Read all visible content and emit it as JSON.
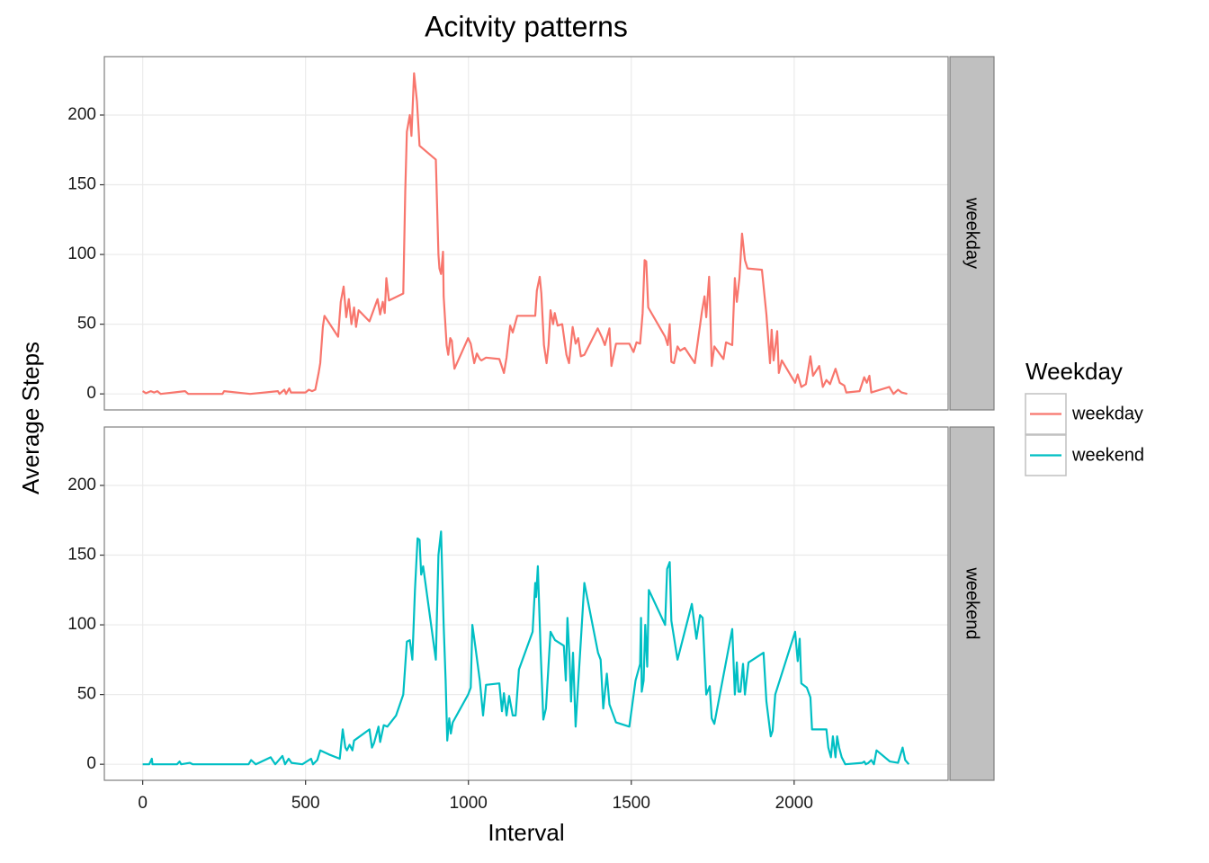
{
  "chart_data": {
    "type": "line",
    "title": "Acitvity patterns",
    "x_label": "Interval",
    "y_label": "Average Steps",
    "legend_title": "Weekday",
    "legend_position": "right",
    "grid": true,
    "xlim": [
      -117.75,
      2472.75
    ],
    "xticks": [
      0,
      500,
      1000,
      1500,
      2000
    ],
    "ylim": [
      -11.5,
      241.9
    ],
    "yticks": [
      0,
      50,
      100,
      150,
      200
    ],
    "series": [
      {
        "name": "weekday",
        "color": "#f8766d",
        "x": [
          0,
          10,
          25,
          35,
          45,
          55,
          130,
          140,
          245,
          250,
          330,
          415,
          420,
          435,
          440,
          450,
          455,
          500,
          510,
          520,
          530,
          540,
          545,
          553,
          558,
          600,
          608,
          617,
          625,
          633,
          641,
          649,
          655,
          663,
          696,
          721,
          729,
          737,
          743,
          748,
          756,
          800,
          806,
          811,
          820,
          825,
          833,
          842,
          850,
          855,
          900,
          908,
          911,
          916,
          922,
          924,
          933,
          938,
          944,
          949,
          952,
          957,
          999,
          1007,
          1018,
          1026,
          1035,
          1040,
          1054,
          1095,
          1109,
          1117,
          1128,
          1136,
          1150,
          1205,
          1210,
          1219,
          1224,
          1232,
          1240,
          1246,
          1252,
          1260,
          1265,
          1274,
          1288,
          1301,
          1309,
          1320,
          1329,
          1337,
          1345,
          1356,
          1397,
          1411,
          1419,
          1433,
          1439,
          1453,
          1494,
          1507,
          1516,
          1527,
          1535,
          1541,
          1546,
          1552,
          1604,
          1612,
          1618,
          1623,
          1631,
          1642,
          1650,
          1664,
          1695,
          1717,
          1725,
          1730,
          1739,
          1741,
          1747,
          1755,
          1783,
          1791,
          1810,
          1818,
          1824,
          1832,
          1840,
          1849,
          1857,
          1901,
          1915,
          1926,
          1931,
          1937,
          1948,
          1953,
          1962,
          2003,
          2011,
          2022,
          2036,
          2050,
          2058,
          2077,
          2088,
          2099,
          2110,
          2127,
          2140,
          2154,
          2160,
          2201,
          2215,
          2223,
          2231,
          2237,
          2292,
          2305,
          2319,
          2330,
          2347
        ],
        "values": [
          2,
          0.5,
          2,
          1,
          2,
          0,
          2,
          0,
          0,
          2,
          0,
          2,
          0,
          3,
          0,
          4,
          1,
          1,
          3,
          2,
          3,
          15,
          22,
          48,
          56,
          41,
          66,
          77,
          55,
          68,
          50,
          62,
          48,
          60,
          52,
          68,
          57,
          66,
          58,
          83,
          67,
          72,
          145,
          188,
          200,
          185,
          230,
          210,
          178,
          177,
          168,
          100,
          90,
          86,
          102,
          70,
          35,
          28,
          40,
          38,
          30,
          18,
          40,
          36,
          22,
          29,
          25,
          24,
          26,
          25,
          15,
          26,
          49,
          44,
          56,
          56,
          74,
          84,
          72,
          35,
          22,
          35,
          60,
          50,
          58,
          49,
          50,
          28,
          22,
          48,
          36,
          40,
          27,
          28,
          47,
          40,
          35,
          47,
          20,
          36,
          36,
          30,
          37,
          36,
          58,
          96,
          95,
          62,
          41,
          35,
          50,
          23,
          22,
          34,
          31,
          33,
          22,
          59,
          70,
          55,
          84,
          72,
          20,
          34,
          25,
          37,
          35,
          83,
          66,
          83,
          115,
          96,
          90,
          89,
          57,
          22,
          46,
          24,
          45,
          15,
          24,
          8,
          14,
          5,
          7,
          27,
          13,
          20,
          5,
          10,
          7,
          18,
          8,
          6,
          1,
          2,
          12,
          8,
          13,
          1,
          5,
          0,
          3,
          1,
          0
        ]
      },
      {
        "name": "weekend",
        "color": "#00bfc4",
        "x": [
          0,
          20,
          28,
          30,
          105,
          113,
          118,
          145,
          154,
          325,
          333,
          347,
          393,
          407,
          429,
          437,
          448,
          457,
          490,
          517,
          523,
          536,
          545,
          572,
          605,
          614,
          622,
          627,
          635,
          644,
          649,
          696,
          704,
          710,
          724,
          729,
          740,
          751,
          778,
          800,
          811,
          820,
          828,
          836,
          844,
          850,
          855,
          861,
          900,
          908,
          916,
          924,
          930,
          935,
          941,
          946,
          952,
          999,
          1007,
          1012,
          1021,
          1035,
          1045,
          1054,
          1095,
          1103,
          1109,
          1117,
          1125,
          1136,
          1145,
          1155,
          1197,
          1205,
          1208,
          1213,
          1222,
          1230,
          1238,
          1252,
          1266,
          1293,
          1299,
          1304,
          1310,
          1315,
          1321,
          1329,
          1356,
          1398,
          1406,
          1414,
          1425,
          1433,
          1453,
          1494,
          1513,
          1527,
          1530,
          1532,
          1538,
          1543,
          1549,
          1554,
          1604,
          1610,
          1618,
          1623,
          1642,
          1686,
          1700,
          1711,
          1719,
          1730,
          1741,
          1747,
          1755,
          1810,
          1818,
          1824,
          1829,
          1835,
          1843,
          1849,
          1860,
          1906,
          1915,
          1928,
          1934,
          1942,
          2003,
          2011,
          2017,
          2022,
          2039,
          2050,
          2055,
          2099,
          2105,
          2113,
          2119,
          2127,
          2132,
          2138,
          2146,
          2157,
          2209,
          2215,
          2220,
          2228,
          2237,
          2245,
          2253,
          2294,
          2319,
          2333,
          2341,
          2352
        ],
        "values": [
          0,
          0,
          4,
          0,
          0,
          2,
          0,
          1,
          0,
          0,
          3,
          0,
          5,
          0,
          6,
          0,
          4,
          1,
          0,
          4,
          0,
          3,
          10,
          7,
          4,
          25,
          12,
          10,
          14,
          10,
          17,
          25,
          12,
          15,
          27,
          16,
          28,
          27,
          35,
          50,
          88,
          89,
          75,
          125,
          162,
          161,
          136,
          142,
          75,
          150,
          167,
          100,
          60,
          17,
          33,
          22,
          30,
          50,
          55,
          100,
          85,
          60,
          35,
          57,
          58,
          38,
          51,
          35,
          49,
          35,
          35,
          68,
          95,
          130,
          120,
          142,
          80,
          32,
          40,
          95,
          89,
          85,
          60,
          105,
          78,
          45,
          80,
          27,
          130,
          80,
          75,
          40,
          65,
          43,
          30,
          27,
          60,
          72,
          105,
          52,
          60,
          100,
          70,
          125,
          100,
          140,
          145,
          103,
          75,
          115,
          90,
          107,
          105,
          50,
          56,
          33,
          29,
          97,
          50,
          73,
          52,
          52,
          72,
          50,
          73,
          80,
          45,
          20,
          24,
          50,
          95,
          74,
          90,
          58,
          55,
          48,
          25,
          25,
          12,
          5,
          20,
          5,
          20,
          12,
          5,
          0,
          1,
          2,
          0,
          1,
          3,
          0,
          10,
          2,
          1,
          12,
          3,
          0
        ]
      }
    ]
  }
}
